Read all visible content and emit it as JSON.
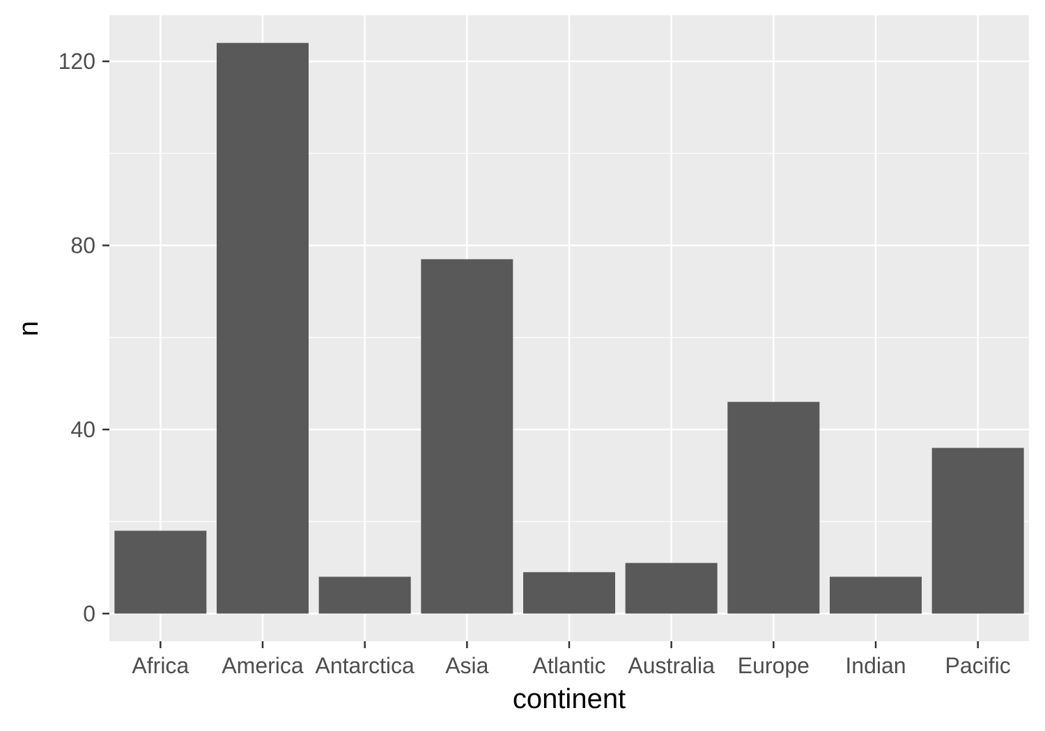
{
  "chart_data": {
    "type": "bar",
    "title": "",
    "xlabel": "continent",
    "ylabel": "n",
    "categories": [
      "Africa",
      "America",
      "Antarctica",
      "Asia",
      "Atlantic",
      "Australia",
      "Europe",
      "Indian",
      "Pacific"
    ],
    "values": [
      18,
      124,
      8,
      77,
      9,
      11,
      46,
      8,
      36
    ],
    "ylim": [
      -6,
      130
    ],
    "yticks": [
      0,
      40,
      80,
      120
    ],
    "ytick_labels": [
      "0",
      "40",
      "80",
      "120"
    ],
    "grid": true,
    "legend": "none",
    "colors": {
      "panel_background": "#ebebeb",
      "grid": "#ffffff",
      "bar": "#595959",
      "tick": "#333333",
      "tick_text": "#4d4d4d",
      "title_text": "#000000"
    }
  }
}
